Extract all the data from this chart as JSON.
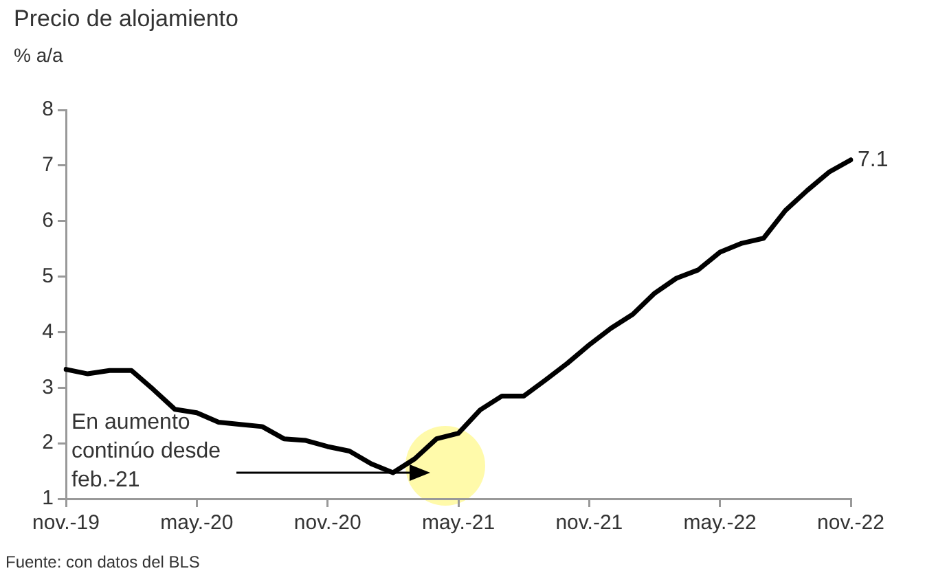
{
  "chart_data": {
    "type": "line",
    "title": "Precio de alojamiento",
    "ylabel": "% a/a",
    "categories": [
      "nov.-19",
      null,
      null,
      null,
      null,
      null,
      "may.-20",
      null,
      null,
      null,
      null,
      null,
      "nov.-20",
      null,
      null,
      null,
      null,
      null,
      "may.-21",
      null,
      null,
      null,
      null,
      null,
      "nov.-21",
      null,
      null,
      null,
      null,
      null,
      "may.-22",
      null,
      null,
      null,
      null,
      null,
      "nov.-22"
    ],
    "series": [
      {
        "color": "#000000",
        "values": [
          3.33,
          3.25,
          3.31,
          3.31,
          2.97,
          2.61,
          2.55,
          2.38,
          2.34,
          2.3,
          2.08,
          2.05,
          1.94,
          1.86,
          1.63,
          1.47,
          1.72,
          2.08,
          2.18,
          2.6,
          2.85,
          2.85,
          3.14,
          3.44,
          3.77,
          4.07,
          4.32,
          4.7,
          4.97,
          5.12,
          5.44,
          5.6,
          5.69,
          6.19,
          6.55,
          6.88,
          7.1
        ],
        "value_labels": [
          null,
          null,
          null,
          null,
          null,
          null,
          null,
          null,
          null,
          null,
          null,
          null,
          null,
          null,
          null,
          null,
          null,
          null,
          null,
          null,
          null,
          null,
          null,
          null,
          null,
          null,
          null,
          null,
          null,
          null,
          null,
          null,
          null,
          null,
          null,
          null,
          "7.1"
        ]
      }
    ],
    "ylim": [
      1,
      8
    ],
    "yticks": [
      1,
      2,
      3,
      4,
      5,
      6,
      7,
      8
    ],
    "grid": false,
    "legend": false,
    "marker": "none",
    "line_style": "solid",
    "annotations": [
      "En aumento continúo desde feb.-21",
      "Fuente: con datos del BLS"
    ]
  }
}
